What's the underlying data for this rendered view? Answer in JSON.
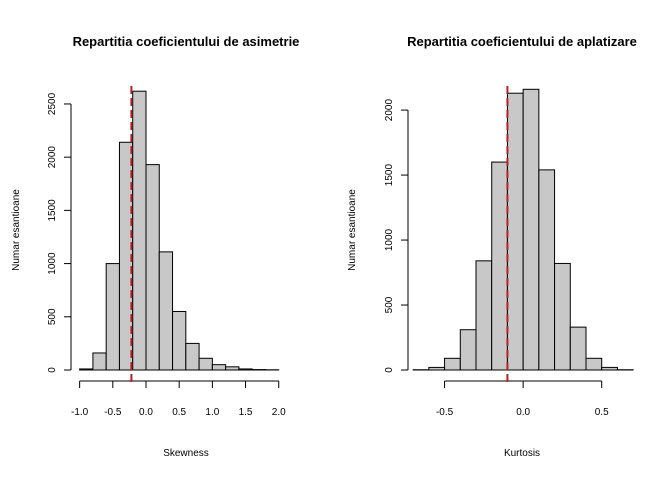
{
  "chart_data": [
    {
      "type": "bar",
      "title": "Repartitia coeficientului de asimetrie",
      "xlabel": "Skewness",
      "ylabel": "Numar esantioane",
      "bin_width": 0.2,
      "bin_starts": [
        -1.0,
        -0.8,
        -0.6,
        -0.4,
        -0.2,
        0.0,
        0.2,
        0.4,
        0.6,
        0.8,
        1.0,
        1.2,
        1.4,
        1.6,
        1.8
      ],
      "values": [
        10,
        160,
        1000,
        2140,
        2620,
        1930,
        1110,
        550,
        250,
        110,
        50,
        30,
        10,
        4,
        2
      ],
      "xlim": [
        -1.1,
        2.2
      ],
      "ylim": [
        0,
        2650
      ],
      "x_ticks": [
        -1.0,
        -0.5,
        0.0,
        0.5,
        1.0,
        1.5,
        2.0
      ],
      "x_tick_labels": [
        "-1.0",
        "-0.5",
        "0.0",
        "0.5",
        "1.0",
        "1.5",
        "2.0"
      ],
      "y_ticks": [
        0,
        500,
        1000,
        1500,
        2000,
        2500
      ],
      "y_tick_labels": [
        "0",
        "500",
        "1000",
        "1500",
        "2000",
        "2500"
      ],
      "reference_line": -0.22,
      "reference_color": "#b22222",
      "bar_fill": "#c8c8c8",
      "grid": false
    },
    {
      "type": "bar",
      "title": "Repartitia coeficientului de aplatizare",
      "xlabel": "Kurtosis",
      "ylabel": "Numar esantioane",
      "bin_width": 0.1,
      "bin_starts": [
        -0.7,
        -0.6,
        -0.5,
        -0.4,
        -0.3,
        -0.2,
        -0.1,
        0.0,
        0.1,
        0.2,
        0.3,
        0.4,
        0.5,
        0.6
      ],
      "values": [
        2,
        20,
        90,
        310,
        840,
        1600,
        2130,
        2160,
        1540,
        820,
        330,
        90,
        20,
        2
      ],
      "xlim": [
        -0.72,
        0.68
      ],
      "ylim": [
        0,
        2170
      ],
      "x_ticks": [
        -0.5,
        0.0,
        0.5
      ],
      "x_tick_labels": [
        "-0.5",
        "0.0",
        "0.5"
      ],
      "y_ticks": [
        0,
        500,
        1000,
        1500,
        2000
      ],
      "y_tick_labels": [
        "0",
        "500",
        "1000",
        "1500",
        "2000"
      ],
      "reference_line": -0.1,
      "reference_color": "#b22222",
      "bar_fill": "#c8c8c8",
      "grid": false
    }
  ]
}
